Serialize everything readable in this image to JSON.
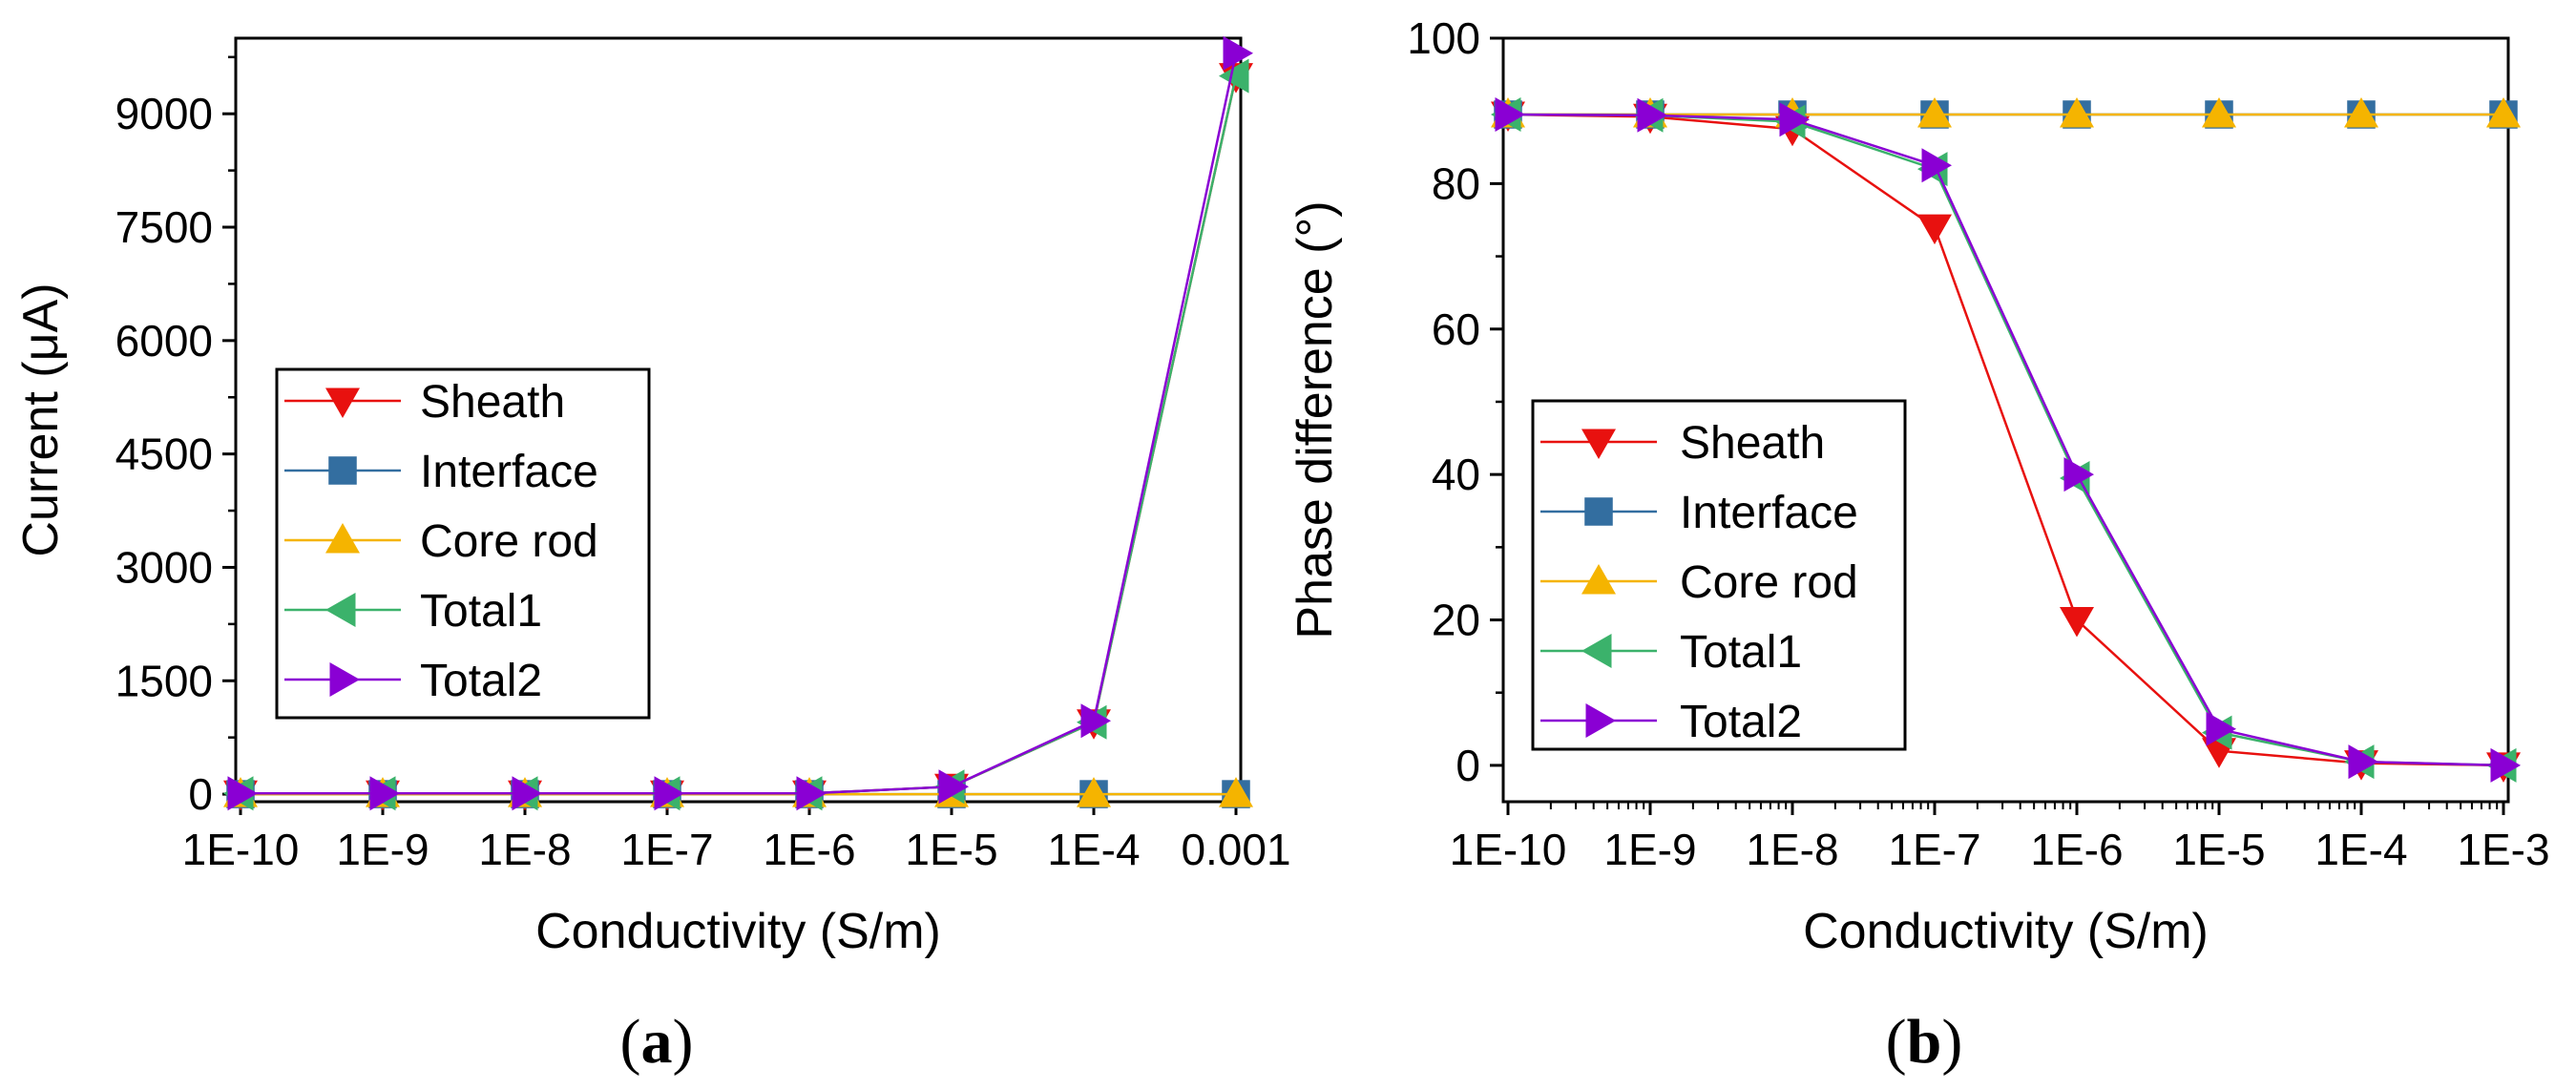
{
  "figure": {
    "panels": [
      {
        "label_open": "(",
        "label_letter": "a",
        "label_close": ")"
      },
      {
        "label_open": "(",
        "label_letter": "b",
        "label_close": ")"
      }
    ]
  },
  "series_style": [
    {
      "name": "Sheath",
      "color": "#e8110f",
      "marker": "triangle-down"
    },
    {
      "name": "Interface",
      "color": "#336ea0",
      "marker": "square"
    },
    {
      "name": "Core rod",
      "color": "#f5b400",
      "marker": "triangle-up"
    },
    {
      "name": "Total1",
      "color": "#3bb26b",
      "marker": "triangle-left"
    },
    {
      "name": "Total2",
      "color": "#8a00d4",
      "marker": "triangle-right"
    }
  ],
  "chart_data": [
    {
      "type": "line",
      "title": "",
      "xlabel": "Conductivity (S/m)",
      "ylabel": "Current (μA)",
      "categories": [
        "1E-10",
        "1E-9",
        "1E-8",
        "1E-7",
        "1E-6",
        "1E-5",
        "1E-4",
        "0.001"
      ],
      "ylim": [
        -100,
        10000
      ],
      "yticks": [
        0,
        1500,
        3000,
        4500,
        6000,
        7500,
        9000
      ],
      "yminor": [
        750,
        2250,
        3750,
        5250,
        6750,
        8250,
        9750
      ],
      "legend_position": "center-left",
      "series": [
        {
          "name": "Sheath",
          "values": [
            10,
            10,
            10,
            10,
            10,
            100,
            950,
            9500
          ]
        },
        {
          "name": "Interface",
          "values": [
            0,
            0,
            0,
            0,
            0,
            0,
            0,
            0
          ]
        },
        {
          "name": "Core rod",
          "values": [
            0,
            0,
            0,
            0,
            0,
            0,
            0,
            0
          ]
        },
        {
          "name": "Total1",
          "values": [
            10,
            10,
            10,
            10,
            10,
            100,
            950,
            9500
          ]
        },
        {
          "name": "Total2",
          "values": [
            10,
            10,
            10,
            10,
            10,
            100,
            970,
            9800
          ]
        }
      ]
    },
    {
      "type": "line",
      "title": "",
      "xlabel": "Conductivity (S/m)",
      "ylabel": "Phase difference (°)",
      "categories": [
        "1E-10",
        "1E-9",
        "1E-8",
        "1E-7",
        "1E-6",
        "1E-5",
        "1E-4",
        "1E-3"
      ],
      "ylim": [
        -5,
        100
      ],
      "yticks": [
        0,
        20,
        40,
        60,
        80,
        100
      ],
      "yminor": [
        10,
        30,
        50,
        70,
        90
      ],
      "legend_position": "center-left",
      "series": [
        {
          "name": "Sheath",
          "values": [
            89.5,
            89.2,
            87.5,
            74,
            20,
            2,
            0.3,
            0
          ]
        },
        {
          "name": "Interface",
          "values": [
            89.5,
            89.5,
            89.5,
            89.5,
            89.5,
            89.5,
            89.5,
            89.5
          ]
        },
        {
          "name": "Core rod",
          "values": [
            89.5,
            89.5,
            89.5,
            89.5,
            89.5,
            89.5,
            89.5,
            89.5
          ]
        },
        {
          "name": "Total1",
          "values": [
            89.5,
            89.4,
            88.5,
            82,
            39.5,
            4.5,
            0.5,
            0
          ]
        },
        {
          "name": "Total2",
          "values": [
            89.5,
            89.4,
            88.8,
            82.5,
            40,
            5,
            0.5,
            0
          ]
        }
      ]
    }
  ]
}
